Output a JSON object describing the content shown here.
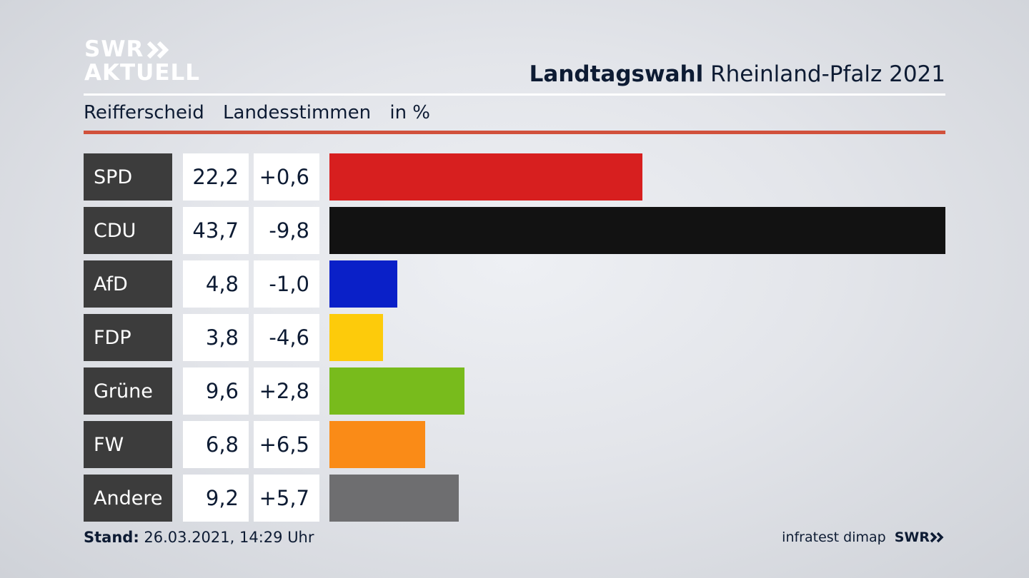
{
  "brand": {
    "line1": "SWR",
    "line2": "AKTUELL"
  },
  "header": {
    "title_bold": "Landtagswahl",
    "title_rest": "Rheinland-Pfalz 2021"
  },
  "subheader": {
    "constituency": "Reifferscheid",
    "metric": "Landesstimmen",
    "unit": "in %"
  },
  "colors": {
    "accent_rule": "#d1513c",
    "party_box": "#3c3c3c"
  },
  "chart_data": {
    "type": "bar",
    "orientation": "horizontal",
    "categories": [
      "SPD",
      "CDU",
      "AfD",
      "FDP",
      "Grüne",
      "FW",
      "Andere"
    ],
    "values": [
      22.2,
      43.7,
      4.8,
      3.8,
      9.6,
      6.8,
      9.2
    ],
    "value_labels": [
      "22,2",
      "43,7",
      "4,8",
      "3,8",
      "9,6",
      "6,8",
      "9,2"
    ],
    "change_labels": [
      "+0,6",
      "-9,8",
      "-1,0",
      "-4,6",
      "+2,8",
      "+6,5",
      "+5,7"
    ],
    "changes": [
      0.6,
      -9.8,
      -1.0,
      -4.6,
      2.8,
      6.5,
      5.7
    ],
    "bar_colors": [
      "#d71f1f",
      "#121212",
      "#0a20c8",
      "#fdcb0b",
      "#78bb1c",
      "#fa8b17",
      "#6e6e70"
    ],
    "xlim": [
      0,
      43.7
    ]
  },
  "footer": {
    "stand_label": "Stand:",
    "stand_value": "26.03.2021, 14:29 Uhr",
    "source": "infratest dimap",
    "source_brand": "SWR"
  }
}
